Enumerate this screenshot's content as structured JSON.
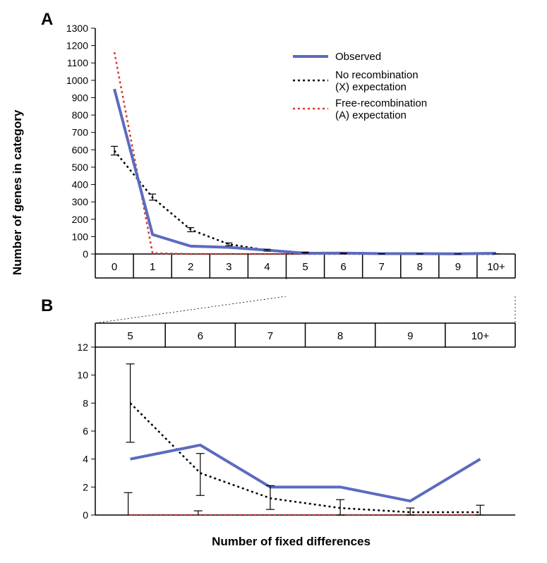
{
  "labels": {
    "panelA": "A",
    "panelB": "B",
    "ylabel": "Number of genes in category",
    "xlabel": "Number of fixed differences"
  },
  "legend": {
    "observed": "Observed",
    "norec_l1": "No recombination",
    "norec_l2": "(X) expectation",
    "free_l1": "Free-recombination",
    "free_l2": "(A) expectation"
  },
  "colors": {
    "observed": "#5b6bbf",
    "norec": "#000000",
    "freerec": "#d83a2f",
    "axis": "#000000",
    "background": "#ffffff"
  },
  "panelA": {
    "type": "line",
    "ylim": [
      0,
      1300
    ],
    "ytick_step": 100,
    "categories": [
      "0",
      "1",
      "2",
      "3",
      "4",
      "5",
      "6",
      "7",
      "8",
      "9",
      "10+"
    ],
    "observed": [
      950,
      112,
      45,
      38,
      22,
      4,
      5,
      2,
      2,
      1,
      4
    ],
    "norec": [
      595,
      325,
      140,
      56,
      22,
      8,
      3,
      1,
      0.5,
      0.2,
      0.2
    ],
    "norec_err": [
      [
        570,
        620
      ],
      [
        310,
        345
      ],
      [
        128,
        152
      ],
      [
        48,
        64
      ],
      [
        17,
        27
      ],
      [
        5,
        11
      ],
      [
        1,
        5
      ],
      [
        0,
        2
      ],
      [
        0,
        1
      ],
      [
        0,
        0.6
      ],
      [
        0,
        0.6
      ]
    ],
    "freerec": [
      1162,
      5,
      0,
      0,
      0,
      0,
      0,
      0,
      0,
      0,
      0
    ],
    "line_width": {
      "observed": 4,
      "norec": 2.5,
      "freerec": 2.5
    },
    "dash": {
      "norec": "3 4",
      "freerec": "3 4"
    }
  },
  "panelB": {
    "type": "line",
    "ylim": [
      0,
      12
    ],
    "ytick_step": 2,
    "categories": [
      "5",
      "6",
      "7",
      "8",
      "9",
      "10+"
    ],
    "observed": [
      4,
      5,
      2,
      2,
      1,
      4
    ],
    "norec": [
      8,
      3,
      1.2,
      0.5,
      0.2,
      0.2
    ],
    "norec_err": [
      [
        5.2,
        10.8
      ],
      [
        1.4,
        4.4
      ],
      [
        0.4,
        2.1
      ],
      [
        0,
        1.1
      ],
      [
        0,
        0.5
      ],
      [
        0,
        0.7
      ]
    ],
    "freerec": [
      0,
      0,
      0,
      0,
      0,
      0
    ],
    "freerec_err": [
      [
        0,
        1.6
      ],
      [
        0,
        0.3
      ],
      [
        0,
        0
      ],
      [
        0,
        0
      ],
      [
        0,
        0
      ],
      [
        0,
        0
      ]
    ]
  }
}
